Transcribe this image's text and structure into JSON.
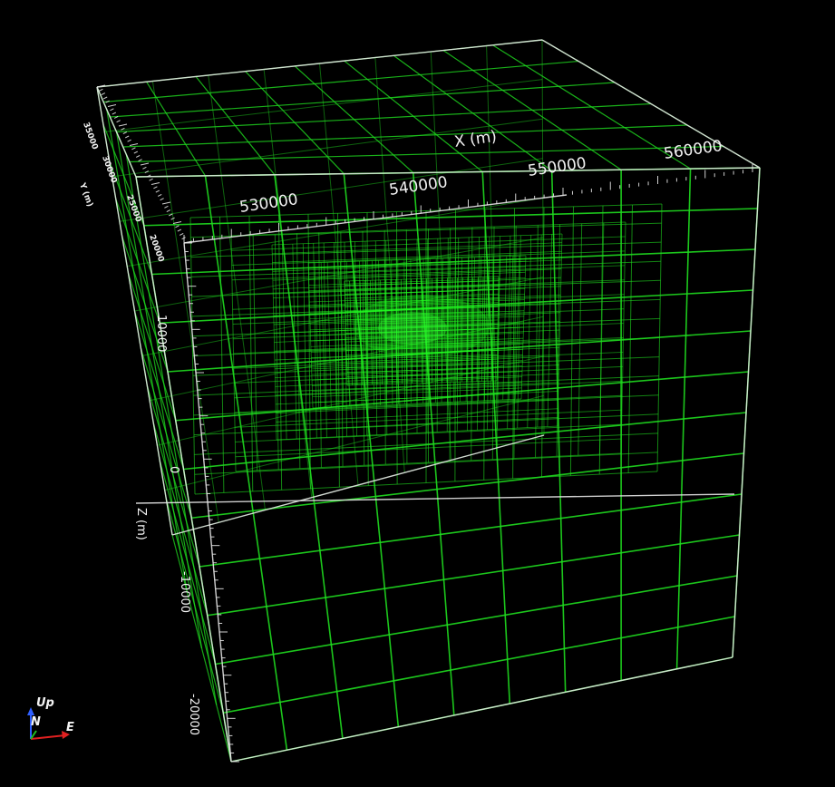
{
  "view": {
    "type": "3d-mesh-viewer",
    "background": "#000000",
    "mesh_color": "#1fdc1f",
    "core_color": "#22ff22",
    "axis_color": "#e6e6e6"
  },
  "axes": {
    "x": {
      "title": "X (m)",
      "tick_labels": [
        "530000",
        "540000",
        "550000",
        "560000"
      ]
    },
    "y": {
      "title": "Y (m)",
      "tick_labels": [
        "35000",
        "30000",
        "25000",
        "20000"
      ]
    },
    "z": {
      "title": "Z (m)",
      "tick_labels": [
        "10000",
        "0",
        "-10000",
        "-20000"
      ]
    }
  },
  "orientation_widget": {
    "up_label": "Up",
    "north_label": "N",
    "east_label": "E",
    "up_color": "#3060ff",
    "north_color": "#20c020",
    "east_color": "#e02020"
  }
}
